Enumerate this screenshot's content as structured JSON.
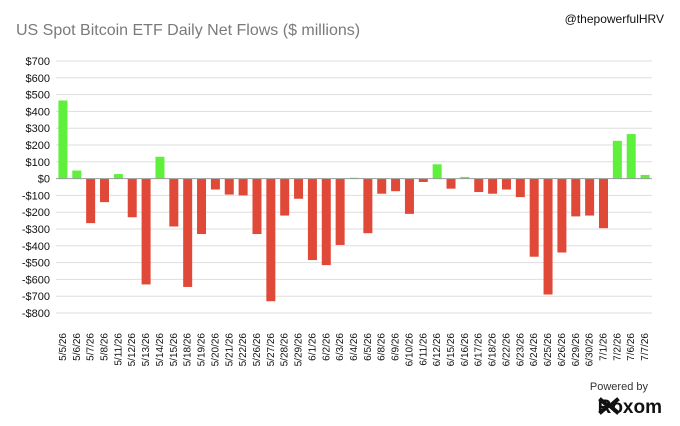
{
  "header": {
    "title": "US Spot Bitcoin ETF Daily Net Flows ($ millions)",
    "handle": "@thepowerfulHRV"
  },
  "footer": {
    "powered_by": "Powered by",
    "brand": "Roxom"
  },
  "colors": {
    "positive": "#5ef03a",
    "negative": "#e04838",
    "grid": "#dedede",
    "zero_line": "#9a9a9a"
  },
  "chart_data": {
    "type": "bar",
    "title": "US Spot Bitcoin ETF Daily Net Flows ($ millions)",
    "xlabel": "",
    "ylabel": "",
    "ylim": [
      -800,
      700
    ],
    "yticks": [
      700,
      600,
      500,
      400,
      300,
      200,
      100,
      0,
      -100,
      -200,
      -300,
      -400,
      -500,
      -600,
      -700,
      -800
    ],
    "ytick_labels": [
      "$700",
      "$600",
      "$500",
      "$400",
      "$300",
      "$200",
      "$100",
      "$0",
      "-$100",
      "-$200",
      "-$300",
      "-$400",
      "-$500",
      "-$600",
      "-$700",
      "-$800"
    ],
    "grid": true,
    "categories": [
      "5/5/26",
      "5/6/26",
      "5/7/26",
      "5/8/26",
      "5/11/26",
      "5/12/26",
      "5/13/26",
      "5/14/26",
      "5/15/26",
      "5/18/26",
      "5/19/26",
      "5/20/26",
      "5/21/26",
      "5/22/26",
      "5/26/26",
      "5/27/26",
      "5/28/26",
      "5/29/26",
      "6/1/26",
      "6/2/26",
      "6/3/26",
      "6/4/26",
      "6/5/26",
      "6/8/26",
      "6/9/26",
      "6/10/26",
      "6/11/26",
      "6/12/26",
      "6/15/26",
      "6/16/26",
      "6/17/26",
      "6/18/26",
      "6/22/26",
      "6/23/26",
      "6/24/26",
      "6/25/26",
      "6/26/26",
      "6/29/26",
      "6/30/26",
      "7/1/26",
      "7/2/26",
      "7/6/26",
      "7/7/26"
    ],
    "values": [
      465,
      48,
      -265,
      -140,
      27,
      -230,
      -630,
      130,
      -285,
      -645,
      -330,
      -65,
      -95,
      -100,
      -330,
      -730,
      -220,
      -120,
      -485,
      -515,
      -395,
      5,
      -325,
      -90,
      -75,
      -210,
      -20,
      85,
      -60,
      10,
      -80,
      -90,
      -65,
      -110,
      -465,
      -690,
      -440,
      -225,
      -220,
      -295,
      225,
      265,
      22
    ]
  }
}
